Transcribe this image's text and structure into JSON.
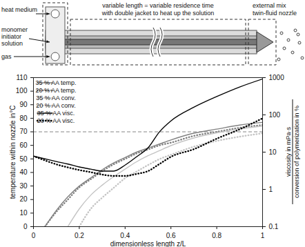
{
  "diagram": {
    "labels": {
      "heat_medium": "heat medium",
      "feed": [
        "monomer",
        "initiator",
        "solution"
      ],
      "gas": "gas",
      "tube": [
        "variable length = variable residence time",
        "with double jacket to heat up the solution"
      ],
      "nozzle": [
        "external mix",
        "twin-fluid nozzle"
      ]
    }
  },
  "chart_data": {
    "type": "line",
    "x_label": "dimensionless length z/L",
    "y_label": "temperature within nozzle in°C",
    "y2_label": [
      "viscosity in mPa·s",
      "conversion of polymerization in %"
    ],
    "x": [
      0,
      0.05,
      0.1,
      0.15,
      0.2,
      0.25,
      0.3,
      0.35,
      0.4,
      0.45,
      0.5,
      0.55,
      0.6,
      0.7,
      0.8,
      0.9,
      1
    ],
    "xlim": [
      0,
      1
    ],
    "xticks": [
      0,
      0.2,
      0.4,
      0.6,
      0.8,
      1
    ],
    "ylim": [
      0,
      110
    ],
    "yticks": [
      0,
      10,
      20,
      30,
      40,
      50,
      60,
      70,
      80,
      90,
      100,
      110
    ],
    "y2lim": [
      0.1,
      1000
    ],
    "y2ticks": [
      0.1,
      1,
      10,
      100,
      1000
    ],
    "log": "y2",
    "grid": false,
    "legend": "top-left",
    "reference_lines": [
      {
        "y": 70,
        "line_style": "dashed"
      }
    ],
    "series": [
      {
        "name": "35 % AA temp.",
        "color": "#808080",
        "line_style": "solid",
        "values": [
          null,
          0,
          12,
          22,
          30,
          36,
          42,
          47,
          51,
          55,
          58,
          61,
          64,
          69,
          72,
          75,
          77
        ]
      },
      {
        "name": "20 % AA temp.",
        "color": "#808080",
        "line_style": "dotted",
        "values": [
          null,
          0,
          11,
          20,
          29,
          35,
          41,
          46,
          50,
          54,
          57,
          60,
          62,
          67,
          70,
          73,
          75
        ]
      },
      {
        "name": "35 % AA conv.",
        "color": "#c4c4c4",
        "line_style": "solid",
        "axis": "y2",
        "values": [
          null,
          null,
          null,
          0.1,
          0.3,
          0.7,
          1.3,
          2.2,
          3.5,
          5.5,
          8,
          11,
          15,
          24,
          33,
          42,
          50
        ]
      },
      {
        "name": "20 % AA conv.",
        "color": "#c4c4c4",
        "line_style": "dotted",
        "axis": "y2",
        "values": [
          null,
          null,
          null,
          null,
          0.1,
          0.3,
          0.6,
          1.1,
          2,
          3,
          4.5,
          6.5,
          8.5,
          14,
          20,
          26,
          32
        ]
      },
      {
        "name": "35 % AA visc.",
        "color": "#000000",
        "line_style": "solid",
        "axis": "y2",
        "values": [
          7.8,
          6.6,
          5.6,
          4.8,
          4.0,
          3.5,
          3.1,
          3.1,
          4.5,
          7.5,
          13,
          35,
          69,
          160,
          310,
          560,
          920
        ]
      },
      {
        "name": "20 % AA visc.",
        "color": "#000000",
        "line_style": "dotted",
        "axis": "y2",
        "values": [
          7.8,
          6.0,
          4.7,
          3.9,
          3.3,
          2.9,
          2.5,
          2.3,
          2.3,
          2.6,
          3.1,
          4.8,
          7.5,
          12,
          23,
          41,
          81
        ]
      }
    ]
  }
}
